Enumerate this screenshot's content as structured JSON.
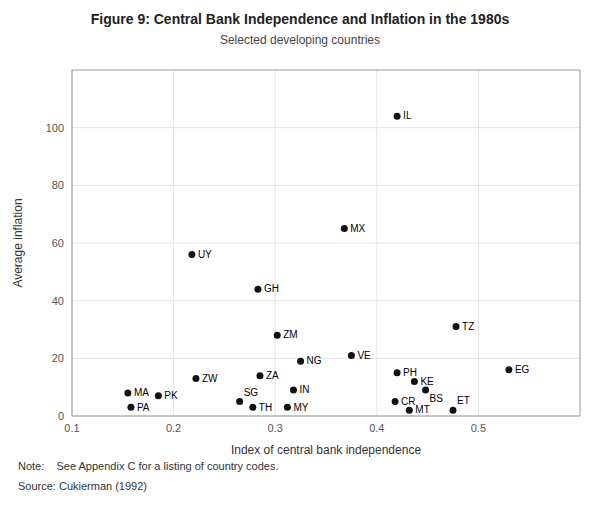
{
  "chart_data": {
    "type": "scatter",
    "title": "Figure 9: Central Bank Independence and Inflation in the 1980s",
    "subtitle": "Selected developing countries",
    "x_label": "Index of central bank independence",
    "y_label": "Average inflation",
    "annotations": [
      "Note:    See Appendix C for a listing of country codes.",
      "Source: Cukierman (1992)"
    ],
    "labels": [
      "MA",
      "PK",
      "PA",
      "UY",
      "ZW",
      "SG",
      "TH",
      "GH",
      "ZA",
      "ZM",
      "NG",
      "IN",
      "MY",
      "VE",
      "MX",
      "IL",
      "PH",
      "KE",
      "CR",
      "BS",
      "MT",
      "ET",
      "TZ",
      "EG"
    ],
    "x": [
      0.155,
      0.185,
      0.158,
      0.218,
      0.222,
      0.265,
      0.278,
      0.283,
      0.285,
      0.302,
      0.325,
      0.318,
      0.312,
      0.375,
      0.368,
      0.42,
      0.42,
      0.437,
      0.418,
      0.448,
      0.432,
      0.475,
      0.478,
      0.53
    ],
    "values": [
      8,
      7,
      3,
      56,
      13,
      5,
      3,
      44,
      14,
      28,
      19,
      9,
      3,
      21,
      65,
      104,
      15,
      12,
      5,
      9,
      2,
      2,
      31,
      16
    ],
    "color": "#111111",
    "xlim": [
      0.1,
      0.6
    ],
    "ylim": [
      0,
      120
    ],
    "xticks": [
      0.1,
      0.2,
      0.3,
      0.4,
      0.5
    ],
    "yticks": [
      0,
      20,
      40,
      60,
      80,
      100
    ],
    "grid": true
  }
}
